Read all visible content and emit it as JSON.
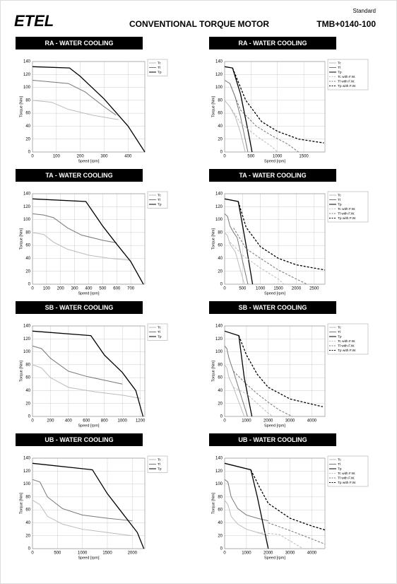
{
  "header": {
    "logo": "ETEL",
    "title": "CONVENTIONAL TORQUE MOTOR",
    "model": "TMB+0140-100",
    "version": "Standard"
  },
  "chart_data": [
    {
      "type": "line",
      "title": "RA - WATER COOLING",
      "x_label": "Speed [rpm]",
      "y_label": "Torque [Nm]",
      "xlim": [
        0,
        470
      ],
      "ylim": [
        0,
        140
      ],
      "xticks": [
        0,
        100,
        200,
        300,
        400
      ],
      "yticks": [
        0,
        20,
        40,
        60,
        80,
        100,
        120,
        140
      ],
      "grid": true,
      "series": [
        {
          "name": "Tc",
          "color": "#bbbbbb",
          "dashed": false,
          "x": [
            0,
            80,
            150,
            250,
            360
          ],
          "values": [
            80,
            77,
            66,
            57,
            50
          ]
        },
        {
          "name": "Tl",
          "color": "#777777",
          "dashed": false,
          "x": [
            0,
            150,
            220,
            300,
            350
          ],
          "values": [
            111,
            106,
            93,
            70,
            57
          ]
        },
        {
          "name": "Tp",
          "color": "#000000",
          "dashed": false,
          "x": [
            0,
            155,
            200,
            300,
            400,
            470
          ],
          "values": [
            132,
            130,
            117,
            82,
            40,
            0
          ]
        }
      ]
    },
    {
      "type": "line",
      "title": "RA - WATER COOLING",
      "x_label": "Speed [rpm]",
      "y_label": "Torque [Nm]",
      "xlim": [
        0,
        1900
      ],
      "ylim": [
        0,
        140
      ],
      "xticks": [
        0,
        500,
        1000,
        1500
      ],
      "yticks": [
        0,
        20,
        40,
        60,
        80,
        100,
        120,
        140
      ],
      "grid": true,
      "series": [
        {
          "name": "Tc",
          "color": "#bbbbbb",
          "dashed": false,
          "x": [
            0,
            100,
            200,
            300,
            390
          ],
          "values": [
            80,
            70,
            55,
            30,
            0
          ]
        },
        {
          "name": "Tl",
          "color": "#777777",
          "dashed": false,
          "x": [
            0,
            100,
            200,
            300,
            440
          ],
          "values": [
            111,
            106,
            85,
            55,
            0
          ]
        },
        {
          "name": "Tp",
          "color": "#000000",
          "dashed": false,
          "x": [
            0,
            150,
            300,
            450,
            520
          ],
          "values": [
            132,
            130,
            90,
            30,
            0
          ]
        },
        {
          "name": "Tc with F.W.",
          "color": "#bbbbbb",
          "dashed": true,
          "x": [
            100,
            300,
            600,
            900,
            1000
          ],
          "values": [
            70,
            45,
            25,
            8,
            0
          ]
        },
        {
          "name": "Tl with F.W.",
          "color": "#777777",
          "dashed": true,
          "x": [
            100,
            300,
            600,
            900,
            1200,
            1400
          ],
          "values": [
            106,
            65,
            40,
            25,
            12,
            0
          ]
        },
        {
          "name": "Tp with F.W.",
          "color": "#000000",
          "dashed": true,
          "x": [
            150,
            400,
            700,
            1000,
            1400,
            1880
          ],
          "values": [
            130,
            80,
            47,
            32,
            20,
            14
          ]
        }
      ]
    },
    {
      "type": "line",
      "title": "TA - WATER COOLING",
      "x_label": "Speed [rpm]",
      "y_label": "Torque [Nm]",
      "xlim": [
        0,
        800
      ],
      "ylim": [
        0,
        140
      ],
      "xticks": [
        0,
        100,
        200,
        300,
        400,
        500,
        600,
        700
      ],
      "yticks": [
        0,
        20,
        40,
        60,
        80,
        100,
        120,
        140
      ],
      "grid": true,
      "series": [
        {
          "name": "Tc",
          "color": "#bbbbbb",
          "dashed": false,
          "x": [
            0,
            80,
            150,
            250,
            400,
            550,
            700
          ],
          "values": [
            80,
            77,
            65,
            54,
            45,
            40,
            37
          ]
        },
        {
          "name": "Tl",
          "color": "#777777",
          "dashed": false,
          "x": [
            0,
            80,
            150,
            250,
            350,
            500,
            600
          ],
          "values": [
            109,
            107,
            103,
            87,
            76,
            68,
            64
          ]
        },
        {
          "name": "Tp",
          "color": "#000000",
          "dashed": false,
          "x": [
            0,
            380,
            500,
            600,
            700,
            790
          ],
          "values": [
            132,
            128,
            90,
            62,
            35,
            0
          ]
        }
      ]
    },
    {
      "type": "line",
      "title": "TA - WATER COOLING",
      "x_label": "Speed [rpm]",
      "y_label": "Torque [Nm]",
      "xlim": [
        0,
        2800
      ],
      "ylim": [
        0,
        140
      ],
      "xticks": [
        0,
        500,
        1000,
        1500,
        2000,
        2500
      ],
      "yticks": [
        0,
        20,
        40,
        60,
        80,
        100,
        120,
        140
      ],
      "grid": true,
      "series": [
        {
          "name": "Tc",
          "color": "#bbbbbb",
          "dashed": false,
          "x": [
            0,
            80,
            150,
            300,
            550
          ],
          "values": [
            80,
            75,
            62,
            50,
            0
          ]
        },
        {
          "name": "Tl",
          "color": "#777777",
          "dashed": false,
          "x": [
            0,
            80,
            150,
            250,
            350,
            650
          ],
          "values": [
            109,
            105,
            90,
            80,
            72,
            0
          ]
        },
        {
          "name": "Tp",
          "color": "#000000",
          "dashed": false,
          "x": [
            0,
            380,
            600,
            780
          ],
          "values": [
            132,
            128,
            60,
            0
          ]
        },
        {
          "name": "Tc with F.W.",
          "color": "#bbbbbb",
          "dashed": true,
          "x": [
            150,
            500,
            1000,
            1500,
            1650
          ],
          "values": [
            65,
            45,
            25,
            8,
            0
          ]
        },
        {
          "name": "Tl with F.W.",
          "color": "#777777",
          "dashed": true,
          "x": [
            250,
            600,
            1000,
            1500,
            2000,
            2300
          ],
          "values": [
            87,
            55,
            40,
            22,
            8,
            0
          ]
        },
        {
          "name": "Tp with F.W.",
          "color": "#000000",
          "dashed": true,
          "x": [
            380,
            600,
            1000,
            1500,
            2000,
            2800
          ],
          "values": [
            128,
            88,
            58,
            40,
            30,
            22
          ]
        }
      ]
    },
    {
      "type": "line",
      "title": "SB - WATER COOLING",
      "x_label": "Speed [rpm]",
      "y_label": "Torque [Nm]",
      "xlim": [
        0,
        1250
      ],
      "ylim": [
        0,
        140
      ],
      "xticks": [
        0,
        200,
        400,
        600,
        800,
        1000,
        1200
      ],
      "yticks": [
        0,
        20,
        40,
        60,
        80,
        100,
        120,
        140
      ],
      "grid": true,
      "series": [
        {
          "name": "Tc",
          "color": "#bbbbbb",
          "dashed": false,
          "x": [
            0,
            100,
            200,
            400,
            700,
            1000,
            1200
          ],
          "values": [
            80,
            75,
            60,
            45,
            38,
            33,
            28
          ]
        },
        {
          "name": "Tl",
          "color": "#777777",
          "dashed": false,
          "x": [
            0,
            100,
            200,
            400,
            600,
            800,
            1000
          ],
          "values": [
            109,
            105,
            90,
            70,
            62,
            56,
            50
          ]
        },
        {
          "name": "Tp",
          "color": "#000000",
          "dashed": false,
          "x": [
            0,
            650,
            800,
            1000,
            1150,
            1230
          ],
          "values": [
            132,
            125,
            95,
            68,
            40,
            0
          ]
        }
      ]
    },
    {
      "type": "line",
      "title": "SB - WATER COOLING",
      "x_label": "Speed [rpm]",
      "y_label": "Torque [Nm]",
      "xlim": [
        0,
        4600
      ],
      "ylim": [
        0,
        140
      ],
      "xticks": [
        0,
        1000,
        2000,
        3000,
        4000
      ],
      "yticks": [
        0,
        20,
        40,
        60,
        80,
        100,
        120,
        140
      ],
      "grid": true,
      "series": [
        {
          "name": "Tc",
          "color": "#bbbbbb",
          "dashed": false,
          "x": [
            0,
            100,
            200,
            400,
            900
          ],
          "values": [
            80,
            75,
            60,
            45,
            0
          ]
        },
        {
          "name": "Tl",
          "color": "#777777",
          "dashed": false,
          "x": [
            0,
            100,
            200,
            400,
            1050
          ],
          "values": [
            109,
            105,
            90,
            70,
            0
          ]
        },
        {
          "name": "Tp",
          "color": "#000000",
          "dashed": false,
          "x": [
            0,
            650,
            900,
            1250
          ],
          "values": [
            132,
            125,
            60,
            0
          ]
        },
        {
          "name": "Tc with F.W.",
          "color": "#bbbbbb",
          "dashed": true,
          "x": [
            400,
            1000,
            1500,
            2000,
            2200
          ],
          "values": [
            45,
            35,
            20,
            5,
            0
          ]
        },
        {
          "name": "Tl with F.W.",
          "color": "#777777",
          "dashed": true,
          "x": [
            400,
            1000,
            1500,
            2000,
            2500,
            3100
          ],
          "values": [
            70,
            50,
            35,
            22,
            10,
            0
          ]
        },
        {
          "name": "Tp with F.W.",
          "color": "#000000",
          "dashed": true,
          "x": [
            650,
            1000,
            1500,
            2000,
            3000,
            4500
          ],
          "values": [
            125,
            95,
            65,
            45,
            27,
            15
          ]
        }
      ]
    },
    {
      "type": "line",
      "title": "UB - WATER COOLING",
      "x_label": "Speed [rpm]",
      "y_label": "Torque [Nm]",
      "xlim": [
        0,
        2250
      ],
      "ylim": [
        0,
        140
      ],
      "xticks": [
        0,
        500,
        1000,
        1500,
        2000
      ],
      "yticks": [
        0,
        20,
        40,
        60,
        80,
        100,
        120,
        140
      ],
      "grid": true,
      "series": [
        {
          "name": "Tc",
          "color": "#bbbbbb",
          "dashed": false,
          "x": [
            0,
            150,
            300,
            600,
            1000,
            1500,
            2000
          ],
          "values": [
            75,
            68,
            50,
            38,
            30,
            25,
            20
          ]
        },
        {
          "name": "Tl",
          "color": "#777777",
          "dashed": false,
          "x": [
            0,
            150,
            300,
            600,
            1000,
            1500,
            2000
          ],
          "values": [
            107,
            103,
            80,
            62,
            52,
            47,
            43
          ]
        },
        {
          "name": "Tp",
          "color": "#000000",
          "dashed": false,
          "x": [
            0,
            1200,
            1500,
            1800,
            2100,
            2230
          ],
          "values": [
            132,
            122,
            85,
            55,
            25,
            0
          ]
        }
      ]
    },
    {
      "type": "line",
      "title": "UB - WATER COOLING",
      "x_label": "Speed [rpm]",
      "y_label": "Torque [Nm]",
      "xlim": [
        0,
        4600
      ],
      "ylim": [
        0,
        140
      ],
      "xticks": [
        0,
        1000,
        2000,
        3000,
        4000
      ],
      "yticks": [
        0,
        20,
        40,
        60,
        80,
        100,
        120,
        140
      ],
      "grid": true,
      "series": [
        {
          "name": "Tc",
          "color": "#bbbbbb",
          "dashed": false,
          "x": [
            0,
            150,
            300,
            600,
            1000,
            1500,
            2000
          ],
          "values": [
            75,
            68,
            50,
            38,
            30,
            25,
            20
          ]
        },
        {
          "name": "Tl",
          "color": "#777777",
          "dashed": false,
          "x": [
            0,
            150,
            300,
            600,
            1000,
            1500,
            2000
          ],
          "values": [
            107,
            103,
            80,
            62,
            52,
            47,
            43
          ]
        },
        {
          "name": "Tp",
          "color": "#000000",
          "dashed": false,
          "x": [
            0,
            1200,
            1500,
            2000
          ],
          "values": [
            132,
            122,
            80,
            0
          ]
        },
        {
          "name": "Tc with F.W.",
          "color": "#bbbbbb",
          "dashed": true,
          "x": [
            1500,
            2500,
            3000,
            3500,
            3600
          ],
          "values": [
            25,
            22,
            12,
            2,
            0
          ]
        },
        {
          "name": "Tl with F.W.",
          "color": "#777777",
          "dashed": true,
          "x": [
            2000,
            3000,
            4000,
            4600
          ],
          "values": [
            40,
            28,
            15,
            7
          ]
        },
        {
          "name": "Tp with F.W.",
          "color": "#000000",
          "dashed": true,
          "x": [
            1200,
            1600,
            2000,
            3000,
            4000,
            4600
          ],
          "values": [
            122,
            95,
            70,
            47,
            35,
            29
          ]
        }
      ]
    }
  ]
}
